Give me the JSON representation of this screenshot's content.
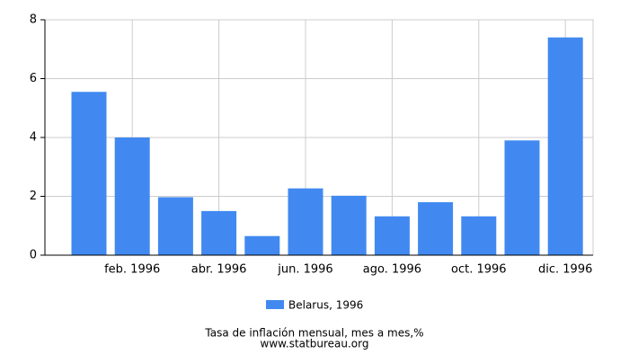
{
  "chart_data": {
    "type": "bar",
    "categories": [
      null,
      "feb. 1996",
      null,
      "abr. 1996",
      null,
      "jun. 1996",
      null,
      "ago. 1996",
      null,
      "oct. 1996",
      null,
      "dic. 1996"
    ],
    "series": [
      {
        "name": "Belarus, 1996",
        "color": "#4189f0",
        "values": [
          5.55,
          4.0,
          1.97,
          1.5,
          0.65,
          2.27,
          2.02,
          1.32,
          1.8,
          1.32,
          3.9,
          7.4
        ]
      }
    ],
    "ylim": [
      0,
      8
    ],
    "yticks": [
      0,
      2,
      4,
      6,
      8
    ],
    "grid": true,
    "title": "Tasa de inflación mensual, mes a mes,%",
    "source": "www.statbureau.org"
  }
}
